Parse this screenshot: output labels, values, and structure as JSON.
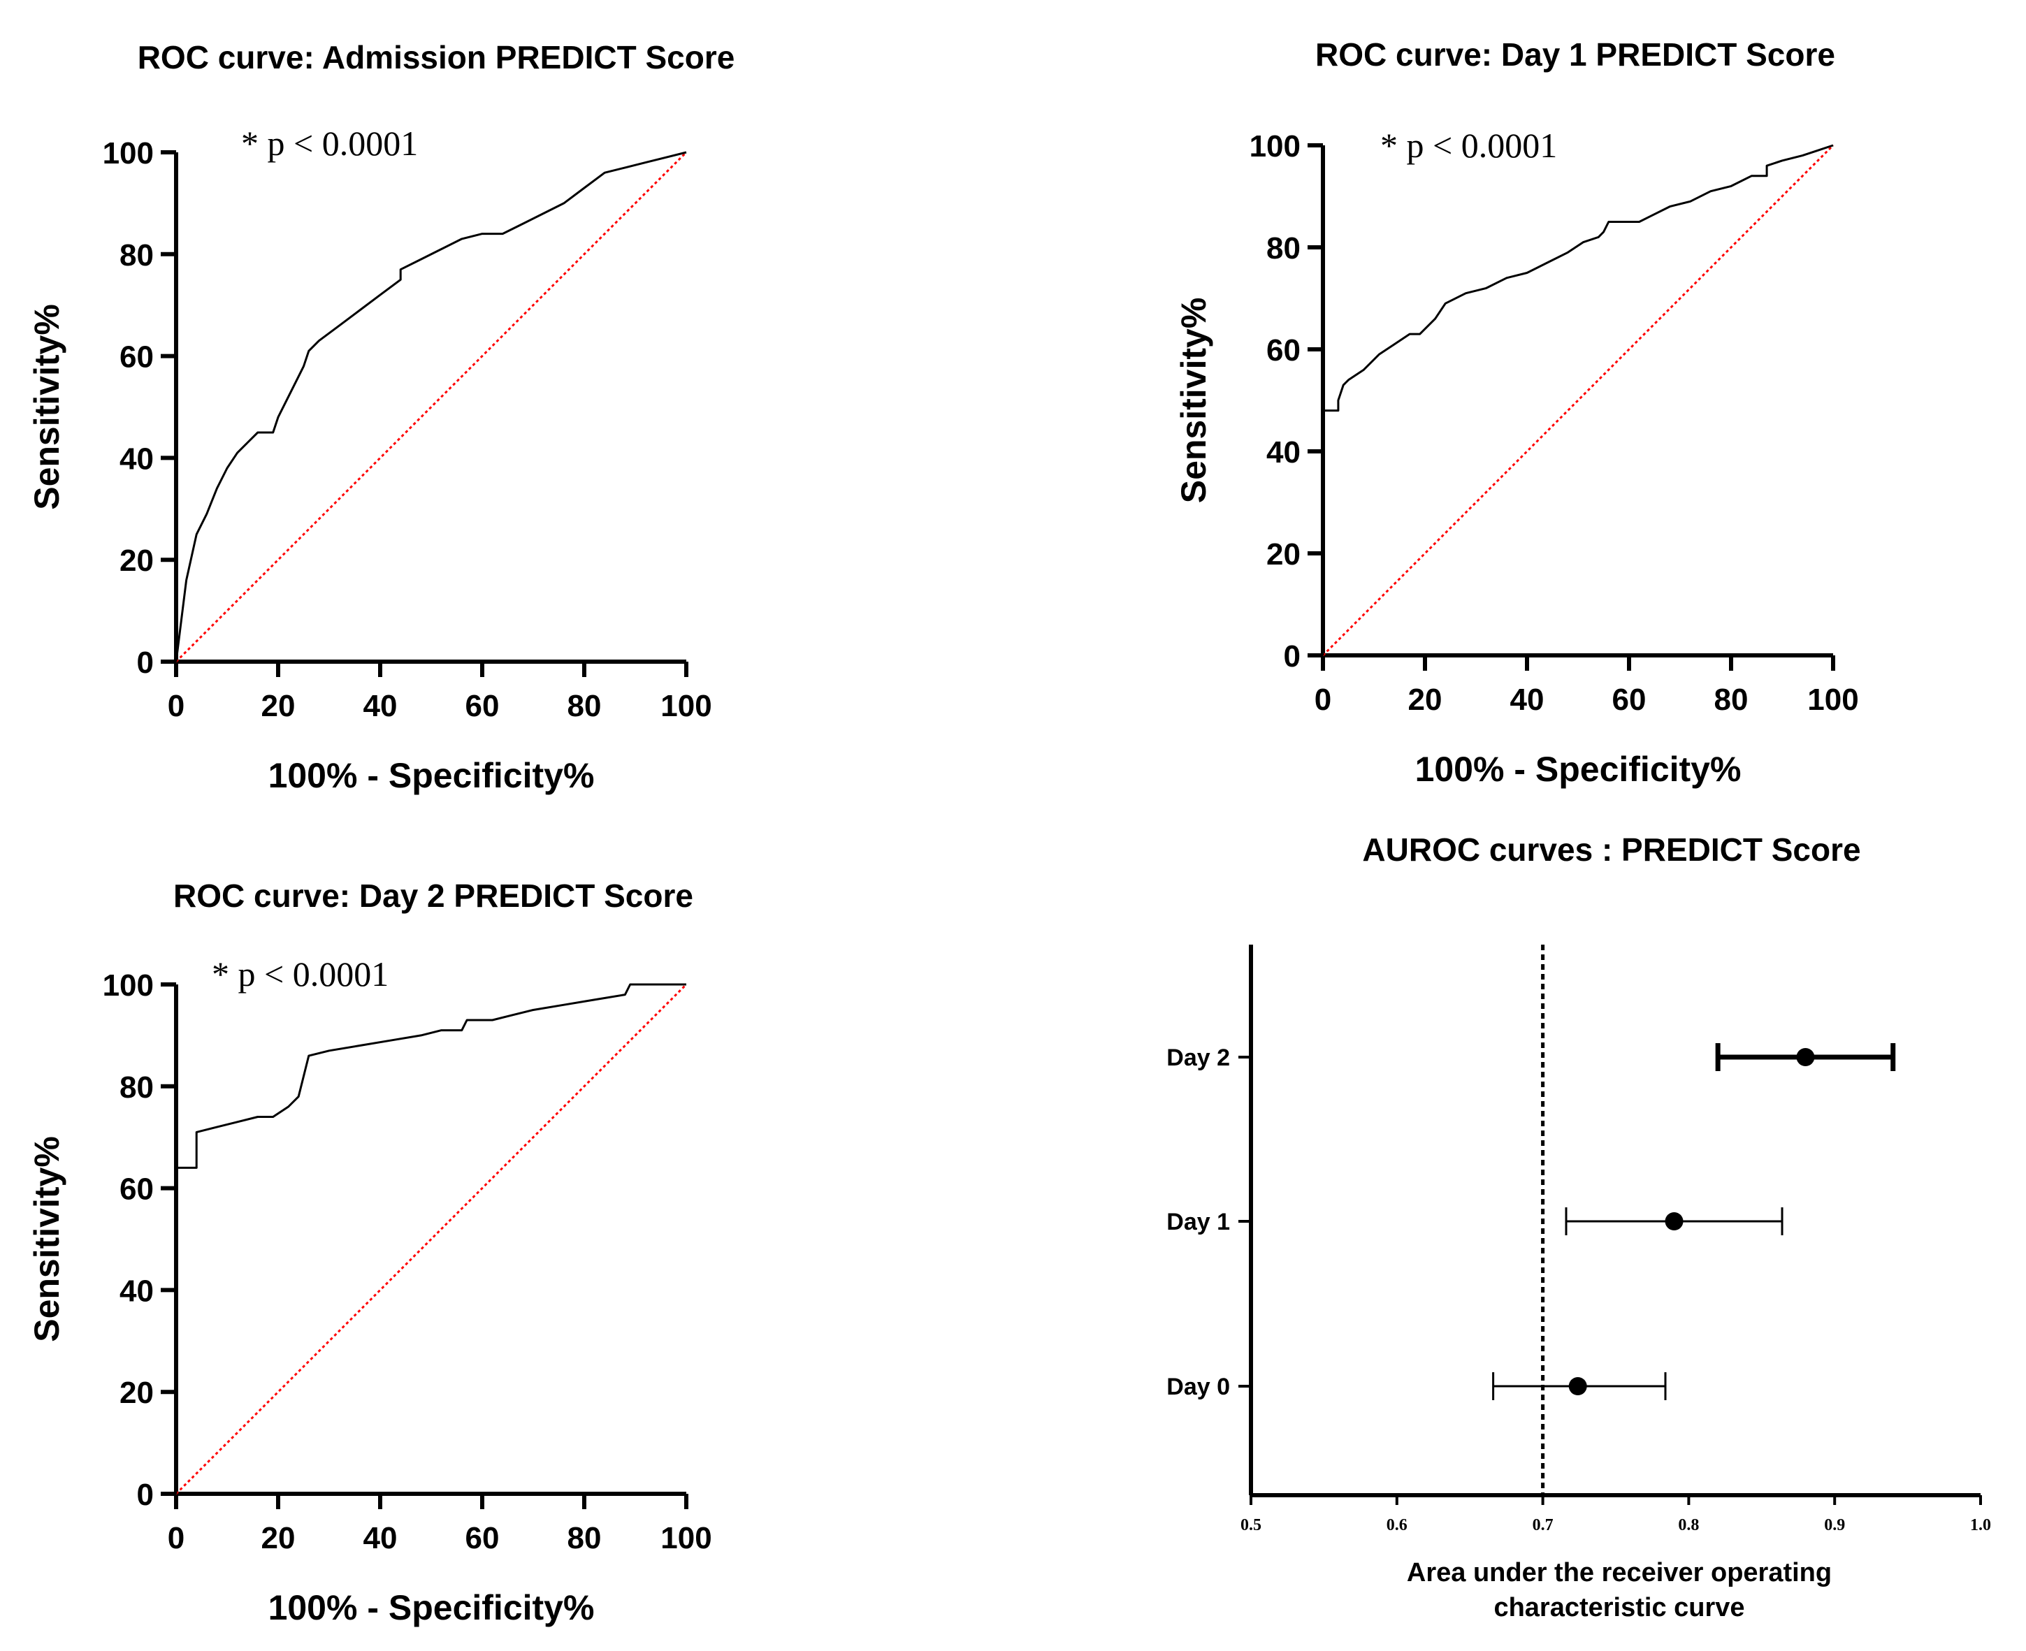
{
  "chart_data": [
    {
      "type": "line",
      "title": "ROC curve: Admission PREDICT Score",
      "xlabel": "100% - Specificity%",
      "ylabel": "Sensitivity%",
      "xlim": [
        0,
        100
      ],
      "ylim": [
        0,
        100
      ],
      "x_ticks": [
        0,
        20,
        40,
        60,
        80,
        100
      ],
      "y_ticks": [
        0,
        20,
        40,
        60,
        80,
        100
      ],
      "annotation": "* p < 0.0001",
      "reference_line": {
        "x": [
          0,
          100
        ],
        "y": [
          0,
          100
        ],
        "color": "#ff0000",
        "style": "dotted"
      },
      "series": [
        {
          "color": "#000000",
          "x": [
            0,
            1,
            2,
            4,
            6,
            8,
            10,
            12,
            14,
            16,
            19,
            20,
            22,
            24,
            25,
            26,
            28,
            32,
            36,
            40,
            44,
            44,
            48,
            52,
            56,
            60,
            64,
            68,
            72,
            76,
            80,
            84,
            88,
            92,
            96,
            100
          ],
          "y": [
            0,
            8,
            16,
            25,
            29,
            34,
            38,
            41,
            43,
            45,
            45,
            48,
            52,
            56,
            58,
            61,
            63,
            66,
            69,
            72,
            75,
            77,
            79,
            81,
            83,
            84,
            84,
            86,
            88,
            90,
            93,
            96,
            97,
            98,
            99,
            100
          ]
        }
      ]
    },
    {
      "type": "line",
      "title": "ROC curve: Day 1 PREDICT Score",
      "xlabel": "100% - Specificity%",
      "ylabel": "Sensitivity%",
      "xlim": [
        0,
        100
      ],
      "ylim": [
        0,
        100
      ],
      "x_ticks": [
        0,
        20,
        40,
        60,
        80,
        100
      ],
      "y_ticks": [
        0,
        20,
        40,
        60,
        80,
        100
      ],
      "annotation": "* p < 0.0001",
      "reference_line": {
        "x": [
          0,
          100
        ],
        "y": [
          0,
          100
        ],
        "color": "#ff0000",
        "style": "dotted"
      },
      "series": [
        {
          "color": "#000000",
          "x": [
            0,
            0,
            3,
            3,
            4,
            5,
            8,
            11,
            14,
            17,
            19,
            22,
            24,
            28,
            32,
            36,
            40,
            44,
            48,
            51,
            54,
            55,
            56,
            62,
            64,
            68,
            72,
            76,
            80,
            84,
            87,
            87,
            90,
            94,
            97,
            100
          ],
          "y": [
            0,
            48,
            48,
            50,
            53,
            54,
            56,
            59,
            61,
            63,
            63,
            66,
            69,
            71,
            72,
            74,
            75,
            77,
            79,
            81,
            82,
            83,
            85,
            85,
            86,
            88,
            89,
            91,
            92,
            94,
            94,
            96,
            97,
            98,
            99,
            100
          ]
        }
      ]
    },
    {
      "type": "line",
      "title": "ROC curve: Day 2 PREDICT Score",
      "xlabel": "100% - Specificity%",
      "ylabel": "Sensitivity%",
      "xlim": [
        0,
        100
      ],
      "ylim": [
        0,
        100
      ],
      "x_ticks": [
        0,
        20,
        40,
        60,
        80,
        100
      ],
      "y_ticks": [
        0,
        20,
        40,
        60,
        80,
        100
      ],
      "annotation": "* p < 0.0001",
      "reference_line": {
        "x": [
          0,
          100
        ],
        "y": [
          0,
          100
        ],
        "color": "#ff0000",
        "style": "dotted"
      },
      "series": [
        {
          "color": "#000000",
          "x": [
            0,
            0,
            4,
            4,
            8,
            12,
            16,
            19,
            22,
            24,
            25,
            26,
            30,
            36,
            42,
            48,
            52,
            56,
            57,
            62,
            66,
            70,
            76,
            82,
            88,
            89,
            92,
            96,
            100
          ],
          "y": [
            0,
            64,
            64,
            71,
            72,
            73,
            74,
            74,
            76,
            78,
            82,
            86,
            87,
            88,
            89,
            90,
            91,
            91,
            93,
            93,
            94,
            95,
            96,
            97,
            98,
            100,
            100,
            100,
            100
          ]
        }
      ]
    },
    {
      "type": "scatter",
      "title": "AUROC curves : PREDICT Score",
      "xlabel": "Area under the receiver operating characteristic curve",
      "ylabel": "",
      "xlim": [
        0.5,
        1.0
      ],
      "x_ticks": [
        "0.5",
        "0.6",
        "0.7",
        "0.8",
        "0.9",
        "1.0"
      ],
      "categories": [
        "Day 2",
        "Day 1",
        "Day 0"
      ],
      "reference_line": {
        "x": 0.7,
        "style": "dotted",
        "color": "#000000"
      },
      "points": [
        {
          "category": "Day 2",
          "value": 0.88,
          "ci_low": 0.82,
          "ci_high": 0.94
        },
        {
          "category": "Day 1",
          "value": 0.79,
          "ci_low": 0.716,
          "ci_high": 0.864
        },
        {
          "category": "Day 0",
          "value": 0.724,
          "ci_low": 0.666,
          "ci_high": 0.784
        }
      ]
    }
  ]
}
